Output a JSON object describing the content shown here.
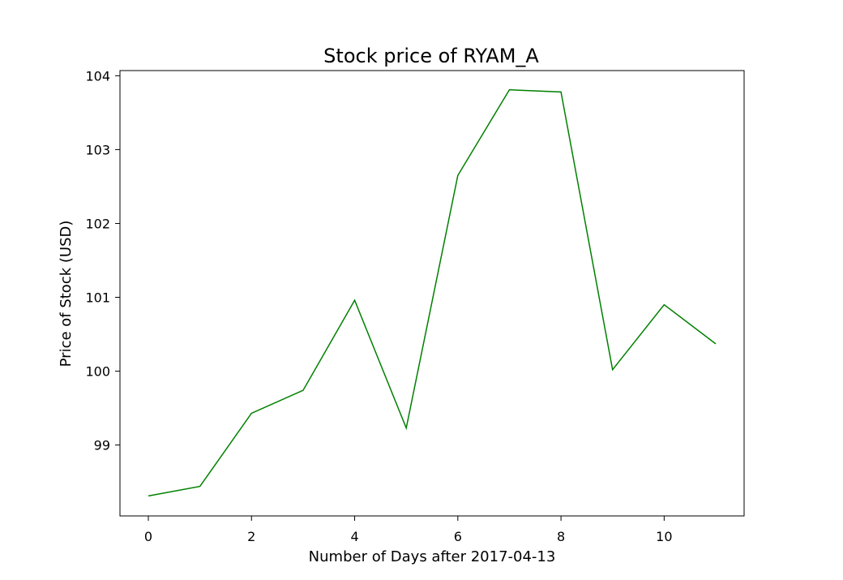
{
  "chart_data": {
    "type": "line",
    "title": "Stock price of RYAM_A",
    "xlabel": "Number of Days after 2017-04-13",
    "ylabel": "Price of Stock (USD)",
    "x": [
      0,
      1,
      2,
      3,
      4,
      5,
      6,
      7,
      8,
      9,
      10,
      11
    ],
    "series": [
      {
        "values": [
          98.31,
          98.44,
          99.43,
          99.74,
          100.96,
          99.23,
          102.65,
          103.81,
          103.78,
          100.02,
          100.9,
          100.37
        ],
        "color": "#008000"
      }
    ],
    "xlim": [
      -0.55,
      11.55
    ],
    "ylim": [
      98.04,
      104.07
    ],
    "xticks": [
      0,
      2,
      4,
      6,
      8,
      10
    ],
    "yticks": [
      99,
      100,
      101,
      102,
      103,
      104
    ],
    "grid": false,
    "legend": "none"
  }
}
